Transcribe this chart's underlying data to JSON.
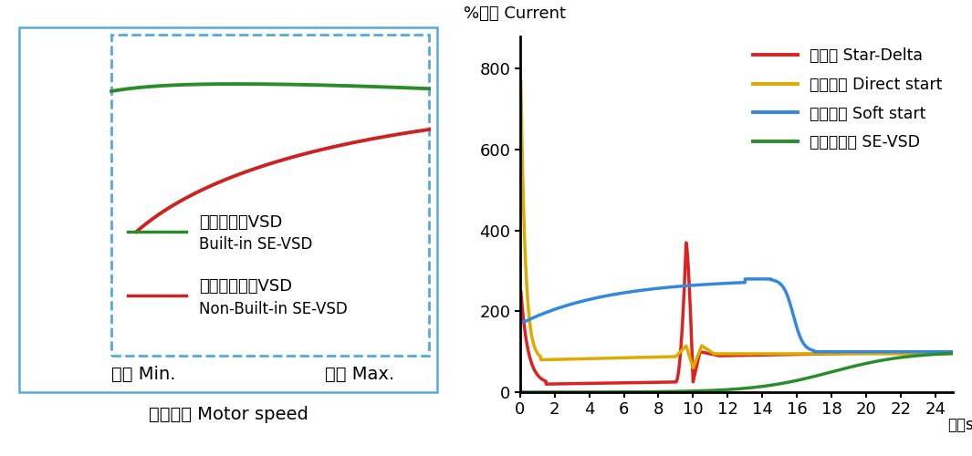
{
  "left_chart": {
    "box_color": "#55AADD",
    "green_color": "#2A8C2A",
    "red_color": "#CC2222",
    "green_label1": "内置欧迈克VSD",
    "green_label2": "Built-in SE-VSD",
    "red_label1": "无内置欧迈克VSD",
    "red_label2": "Non-Built-in SE-VSD",
    "xlabel_min": "最小 Min.",
    "xlabel_max": "最大 Max.",
    "xlabel_main": "电机速度 Motor speed"
  },
  "right_chart": {
    "ylabel": "%电流 Current",
    "xlabel": "时间s",
    "yticks": [
      0,
      200,
      400,
      600,
      800
    ],
    "xticks": [
      0,
      2,
      4,
      6,
      8,
      10,
      12,
      14,
      16,
      18,
      20,
      22,
      24
    ],
    "xlim": [
      0,
      25
    ],
    "ylim": [
      0,
      880
    ],
    "star_delta_color": "#DD2222",
    "direct_start_color": "#DDAA00",
    "soft_start_color": "#3388DD",
    "se_vsd_color": "#2A8C2A",
    "legend_labels": [
      "星三角 Star-Delta",
      "直接启动 Direct start",
      "软接启动 Soft start",
      "欧迈克变频 SE-VSD"
    ]
  }
}
